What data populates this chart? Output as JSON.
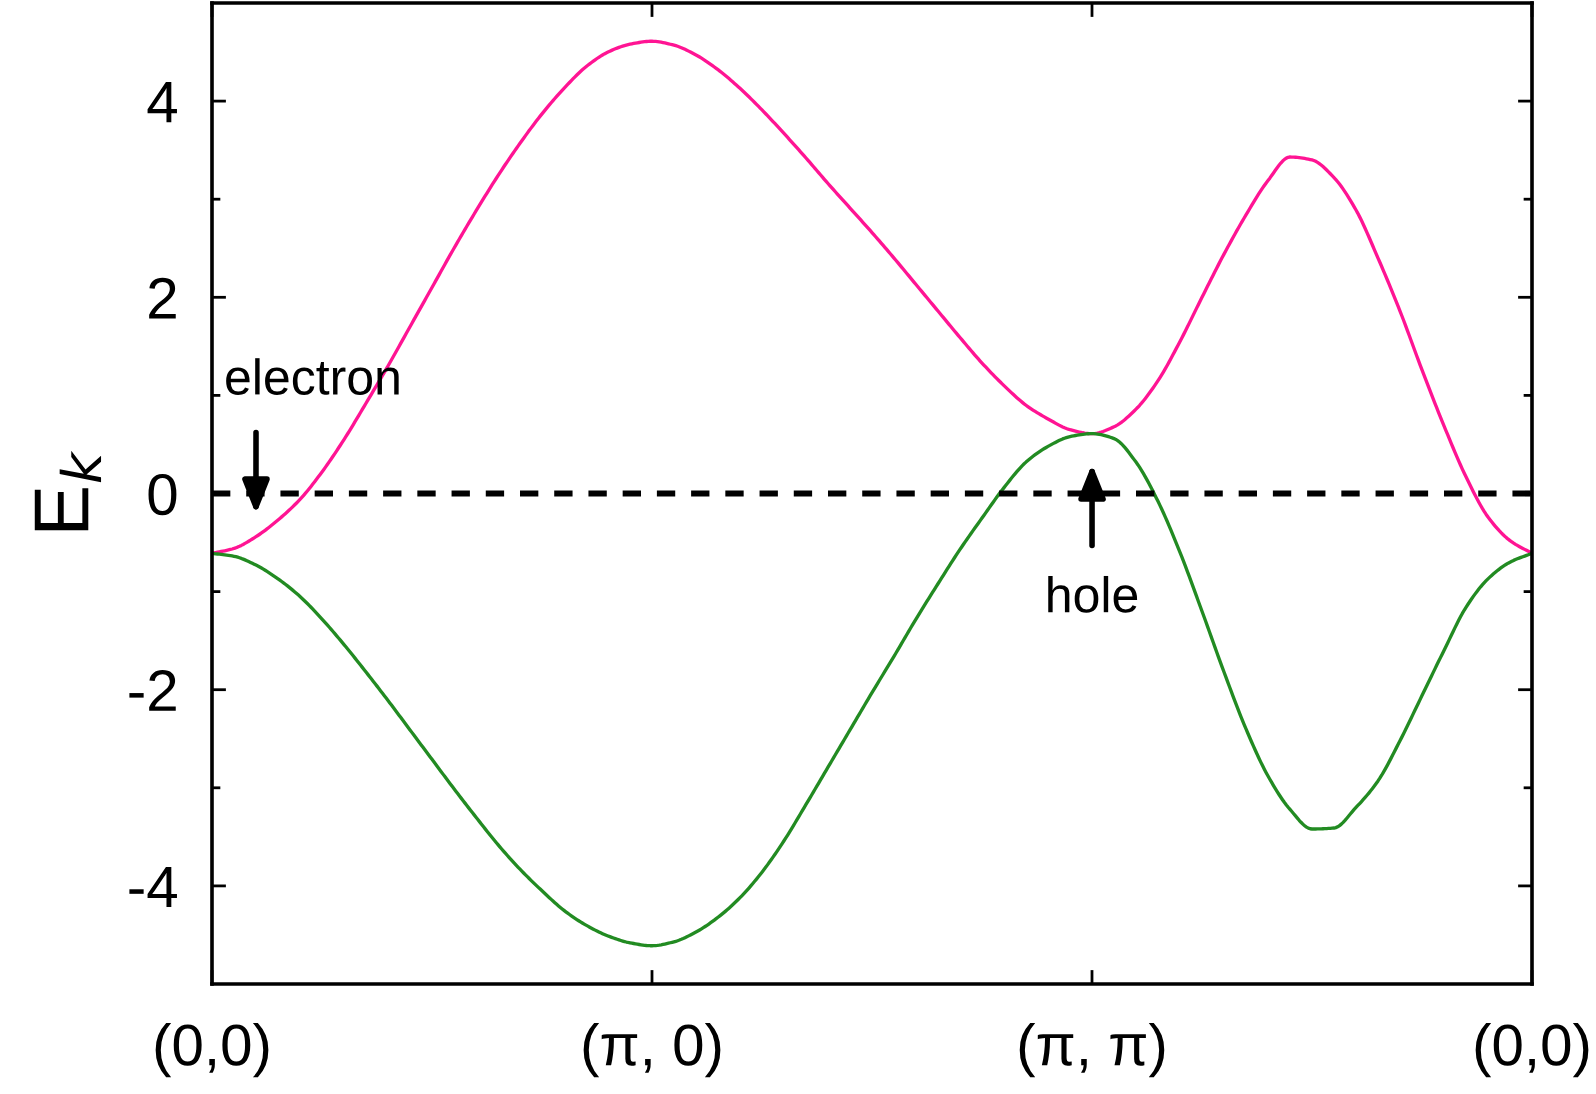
{
  "chart_data": {
    "type": "line",
    "ylabel": "E$_{k}$",
    "ylim": [
      -5,
      5
    ],
    "categories": [
      "(0,0)",
      null,
      null,
      null,
      null,
      null,
      null,
      null,
      null,
      null,
      null,
      null,
      null,
      null,
      null,
      null,
      null,
      null,
      null,
      null,
      "(π, 0)",
      null,
      null,
      null,
      null,
      null,
      null,
      null,
      null,
      null,
      null,
      null,
      null,
      null,
      null,
      null,
      null,
      null,
      null,
      null,
      "(π, π)",
      null,
      null,
      null,
      null,
      null,
      null,
      null,
      null,
      null,
      null,
      null,
      null,
      null,
      null,
      null,
      null,
      null,
      null,
      null,
      "(0,0)"
    ],
    "yticks": [
      -4,
      {
        "value": -3,
        "label": null
      },
      -2,
      {
        "value": -1,
        "label": null
      },
      0,
      {
        "value": 1,
        "label": null
      },
      2,
      {
        "value": 3,
        "label": null
      },
      4
    ],
    "line_style": "solid",
    "series": [
      {
        "color": "#ff1493",
        "values": [
          -0.61,
          -0.56,
          -0.44,
          -0.27,
          -0.06,
          0.22,
          0.55,
          0.92,
          1.3,
          1.7,
          2.1,
          2.5,
          2.88,
          3.24,
          3.57,
          3.87,
          4.13,
          4.35,
          4.5,
          4.58,
          4.61,
          4.57,
          4.47,
          4.32,
          4.13,
          3.91,
          3.67,
          3.42,
          3.16,
          2.91,
          2.66,
          2.4,
          2.13,
          1.86,
          1.59,
          1.33,
          1.1,
          0.9,
          0.76,
          0.65,
          0.61,
          0.68,
          0.86,
          1.15,
          1.55,
          2.0,
          2.44,
          2.84,
          3.19,
          3.43,
          3.4,
          3.22,
          2.89,
          2.4,
          1.86,
          1.26,
          0.69,
          0.17,
          -0.24,
          -0.48,
          -0.61
        ]
      },
      {
        "color": "#228b22",
        "values": [
          -0.61,
          -0.64,
          -0.73,
          -0.87,
          -1.05,
          -1.28,
          -1.54,
          -1.82,
          -2.11,
          -2.41,
          -2.71,
          -3.01,
          -3.3,
          -3.58,
          -3.83,
          -4.05,
          -4.25,
          -4.4,
          -4.51,
          -4.58,
          -4.61,
          -4.57,
          -4.47,
          -4.32,
          -4.12,
          -3.86,
          -3.54,
          -3.17,
          -2.79,
          -2.41,
          -2.03,
          -1.66,
          -1.28,
          -0.92,
          -0.57,
          -0.25,
          0.06,
          0.32,
          0.48,
          0.58,
          0.61,
          0.56,
          0.32,
          -0.08,
          -0.6,
          -1.2,
          -1.82,
          -2.4,
          -2.88,
          -3.22,
          -3.42,
          -3.41,
          -3.2,
          -2.93,
          -2.52,
          -2.06,
          -1.6,
          -1.16,
          -0.87,
          -0.7,
          -0.61
        ]
      }
    ],
    "ref_lines": [
      {
        "axis": "y",
        "value": 0,
        "color": "#000000",
        "line_style": "dashed"
      }
    ],
    "annotations": [
      "electron",
      "hole"
    ]
  }
}
